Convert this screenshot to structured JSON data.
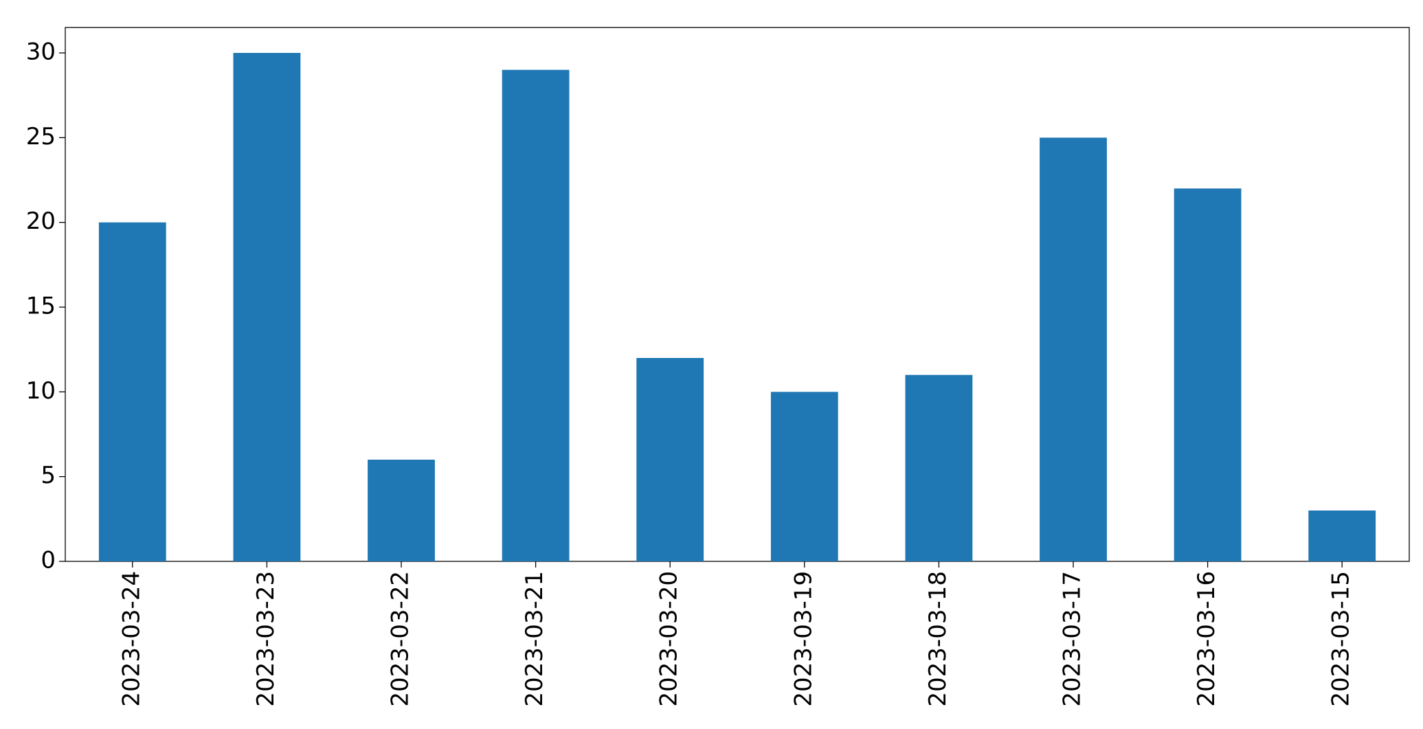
{
  "chart_data": {
    "type": "bar",
    "categories": [
      "2023-03-24",
      "2023-03-23",
      "2023-03-22",
      "2023-03-21",
      "2023-03-20",
      "2023-03-19",
      "2023-03-18",
      "2023-03-17",
      "2023-03-16",
      "2023-03-15"
    ],
    "values": [
      20,
      30,
      6,
      29,
      12,
      10,
      11,
      25,
      22,
      3
    ],
    "color": "#1f77b4",
    "ylim": [
      0,
      31.5
    ],
    "yticks": [
      0,
      5,
      10,
      15,
      20,
      25,
      30
    ],
    "grid": false
  }
}
